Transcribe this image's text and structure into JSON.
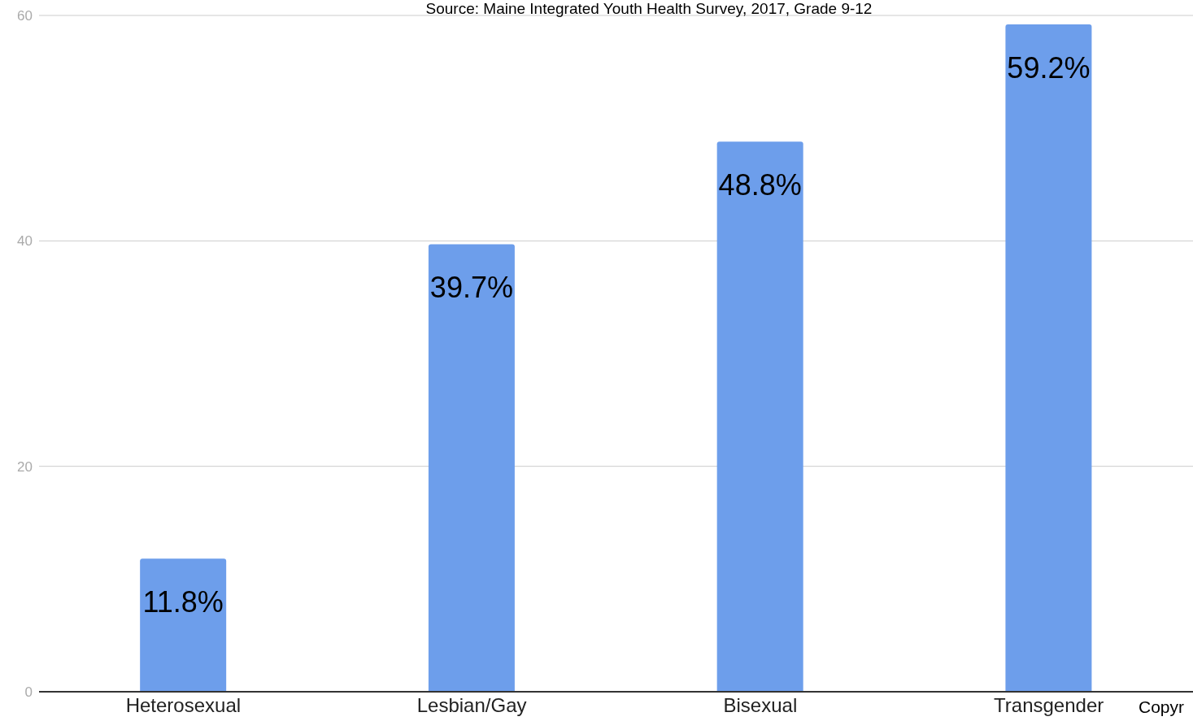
{
  "chart_data": {
    "type": "bar",
    "annotations": [
      "Source: Maine Integrated Youth Health Survey, 2017, Grade 9-12",
      "Copyr"
    ],
    "categories": [
      "Heterosexual",
      "Lesbian/Gay",
      "Bisexual",
      "Transgender"
    ],
    "values": [
      11.8,
      39.7,
      48.8,
      59.2
    ],
    "value_labels": [
      "11.8%",
      "39.7%",
      "48.8%",
      "59.2%"
    ],
    "color": "#6d9eeb",
    "ylim": [
      0,
      60
    ],
    "yticks": [
      0,
      20,
      40,
      60
    ],
    "grid": "y"
  }
}
